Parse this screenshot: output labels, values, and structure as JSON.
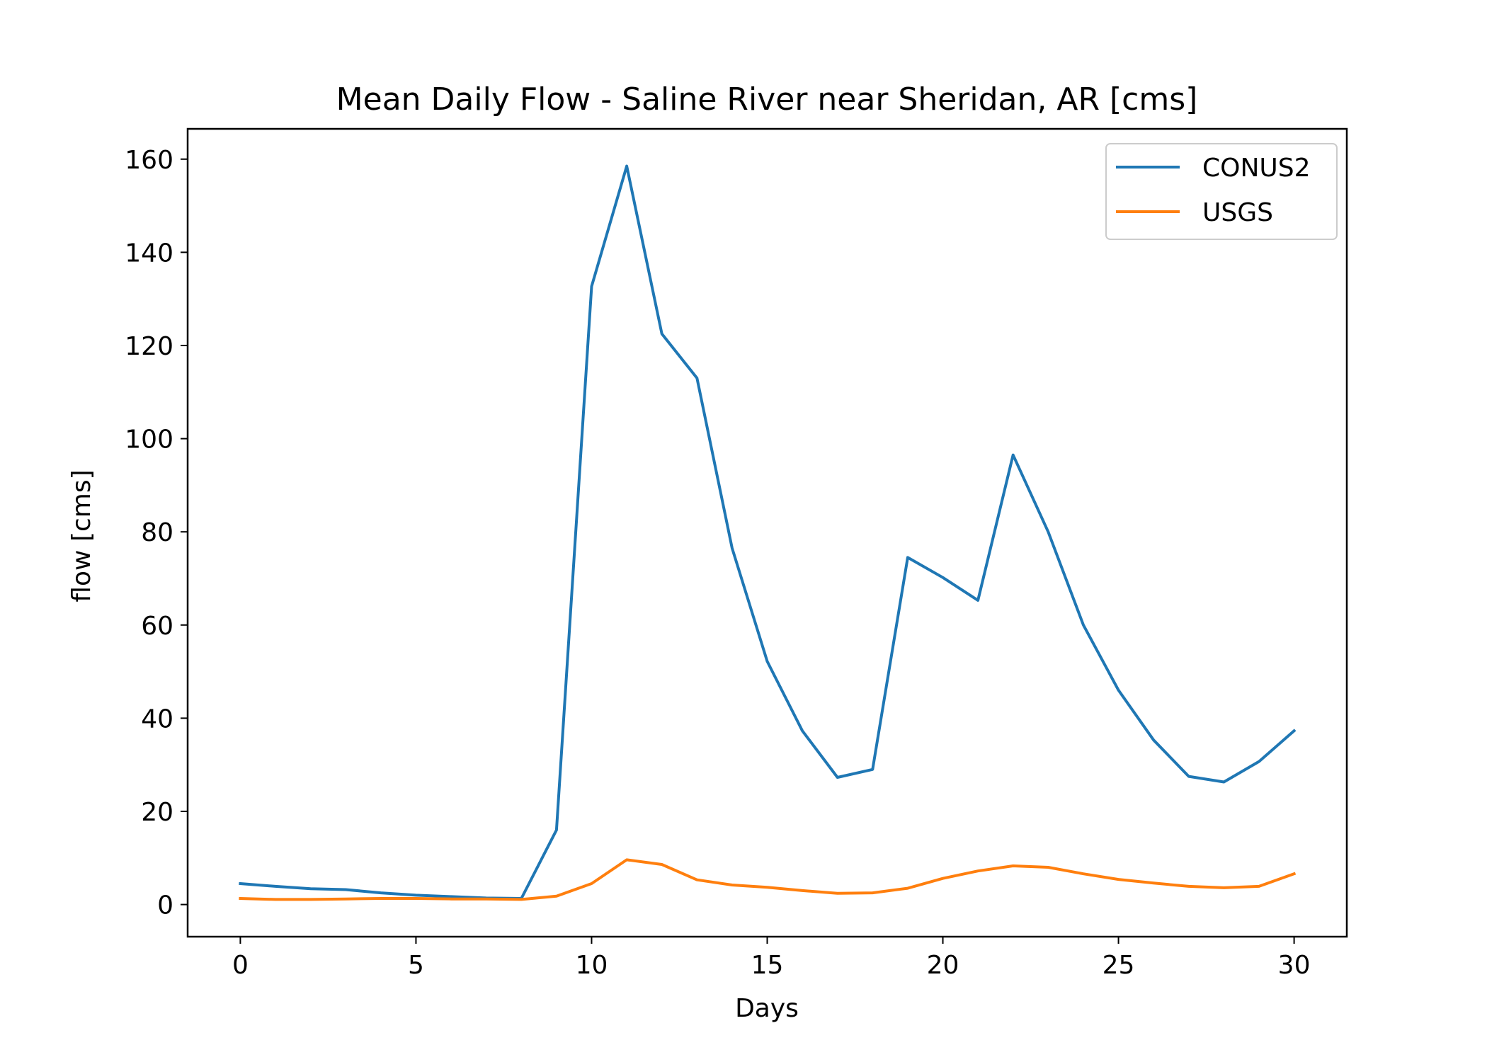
{
  "chart_data": {
    "type": "line",
    "title": "Mean Daily Flow - Saline River near Sheridan, AR [cms]",
    "xlabel": "Days",
    "ylabel": "flow [cms]",
    "xlim": [
      -1.5,
      31.5
    ],
    "ylim": [
      -6.9,
      166.5
    ],
    "xticks": [
      0,
      5,
      10,
      15,
      20,
      25,
      30
    ],
    "yticks": [
      0,
      20,
      40,
      60,
      80,
      100,
      120,
      140,
      160
    ],
    "grid": false,
    "legend_position": "top-right",
    "x": [
      0,
      1,
      2,
      3,
      4,
      5,
      6,
      7,
      8,
      9,
      10,
      11,
      12,
      13,
      14,
      15,
      16,
      17,
      18,
      19,
      20,
      21,
      22,
      23,
      24,
      25,
      26,
      27,
      28,
      29,
      30
    ],
    "series": [
      {
        "name": "CONUS2",
        "color": "#1f77b4",
        "values": [
          4.5,
          3.9,
          3.4,
          3.2,
          2.5,
          2.0,
          1.7,
          1.4,
          1.3,
          16.0,
          132.7,
          158.5,
          122.5,
          113.0,
          76.5,
          52.2,
          37.3,
          27.3,
          29.0,
          74.5,
          70.2,
          65.3,
          96.5,
          80.0,
          60.0,
          46.0,
          35.3,
          27.5,
          26.3,
          30.7,
          37.3
        ]
      },
      {
        "name": "USGS",
        "color": "#ff7f0e",
        "values": [
          1.3,
          1.1,
          1.1,
          1.2,
          1.3,
          1.3,
          1.2,
          1.2,
          1.1,
          1.8,
          4.5,
          9.6,
          8.6,
          5.3,
          4.2,
          3.7,
          3.0,
          2.4,
          2.5,
          3.5,
          5.6,
          7.2,
          8.3,
          8.0,
          6.6,
          5.4,
          4.6,
          3.9,
          3.6,
          3.9,
          6.6
        ]
      }
    ]
  }
}
